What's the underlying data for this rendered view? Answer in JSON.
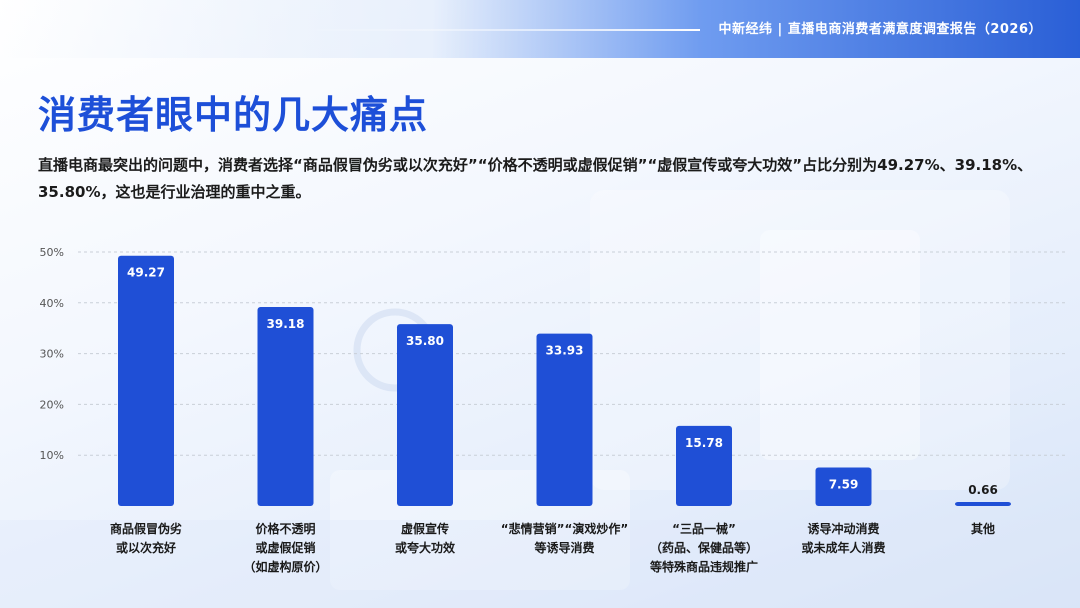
{
  "header": {
    "source": "中新经纬 | 直播电商消费者满意度调查报告（2026）"
  },
  "page": {
    "title": "消费者眼中的几大痛点",
    "description": "直播电商最突出的问题中，消费者选择“商品假冒伪劣或以次充好”“价格不透明或虚假促销”“虚假宣传或夸大功效”占比分别为49.27%、39.18%、35.80%，这也是行业治理的重中之重。"
  },
  "colors": {
    "bar": "#1f4fd6",
    "title": "#1d4fd8",
    "accent": "#2a5fd6"
  },
  "chart_data": {
    "type": "bar",
    "ylim": [
      0,
      50
    ],
    "yticks": [
      "10%",
      "20%",
      "30%",
      "40%",
      "50%"
    ],
    "grid": true,
    "categories": [
      [
        "商品假冒伪劣",
        "或以次充好"
      ],
      [
        "价格不透明",
        "或虚假促销",
        "（如虚构原价）"
      ],
      [
        "虚假宣传",
        "或夸大功效"
      ],
      [
        "“悲情营销”“演戏炒作”",
        "等诱导消费"
      ],
      [
        "“三品一械”",
        "（药品、保健品等）",
        "等特殊商品违规推广"
      ],
      [
        "诱导冲动消费",
        "或未成年人消费"
      ],
      [
        "其他"
      ]
    ],
    "values": [
      49.27,
      39.18,
      35.8,
      33.93,
      15.78,
      7.59,
      0.66
    ],
    "value_labels": [
      "49.27",
      "39.18",
      "35.80",
      "33.93",
      "15.78",
      "7.59",
      "0.66"
    ]
  }
}
